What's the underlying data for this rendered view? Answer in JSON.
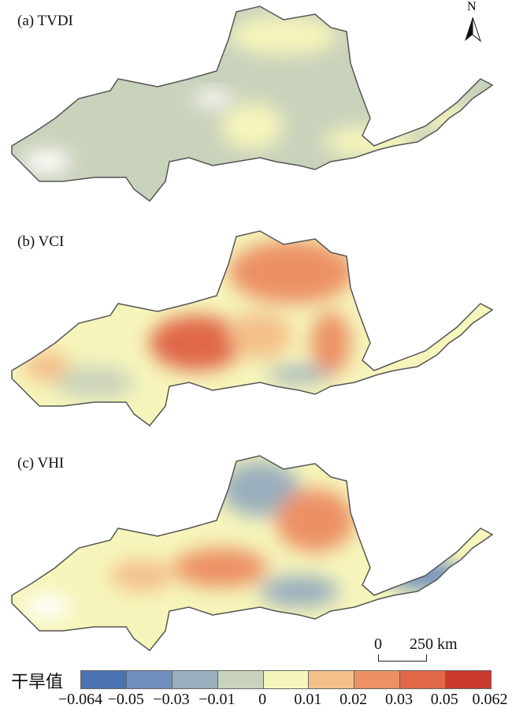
{
  "panels": [
    {
      "label": "(a) TVDI"
    },
    {
      "label": "(b) VCI"
    },
    {
      "label": "(c) VHI"
    }
  ],
  "north_arrow": {
    "label": "N"
  },
  "scale_bar": {
    "start": "0",
    "end": "250 km"
  },
  "legend": {
    "title": "干旱值",
    "colors": [
      "#4a72b0",
      "#6f8fbe",
      "#9aafbe",
      "#c9d2bb",
      "#f6f5bb",
      "#f4c08a",
      "#ec9166",
      "#e0674a",
      "#c93a2d"
    ],
    "ticks": [
      "−0.064",
      "−0.05",
      "−0.03",
      "−0.01",
      "0",
      "0.01",
      "0.02",
      "0.03",
      "0.05",
      "0.062"
    ]
  }
}
